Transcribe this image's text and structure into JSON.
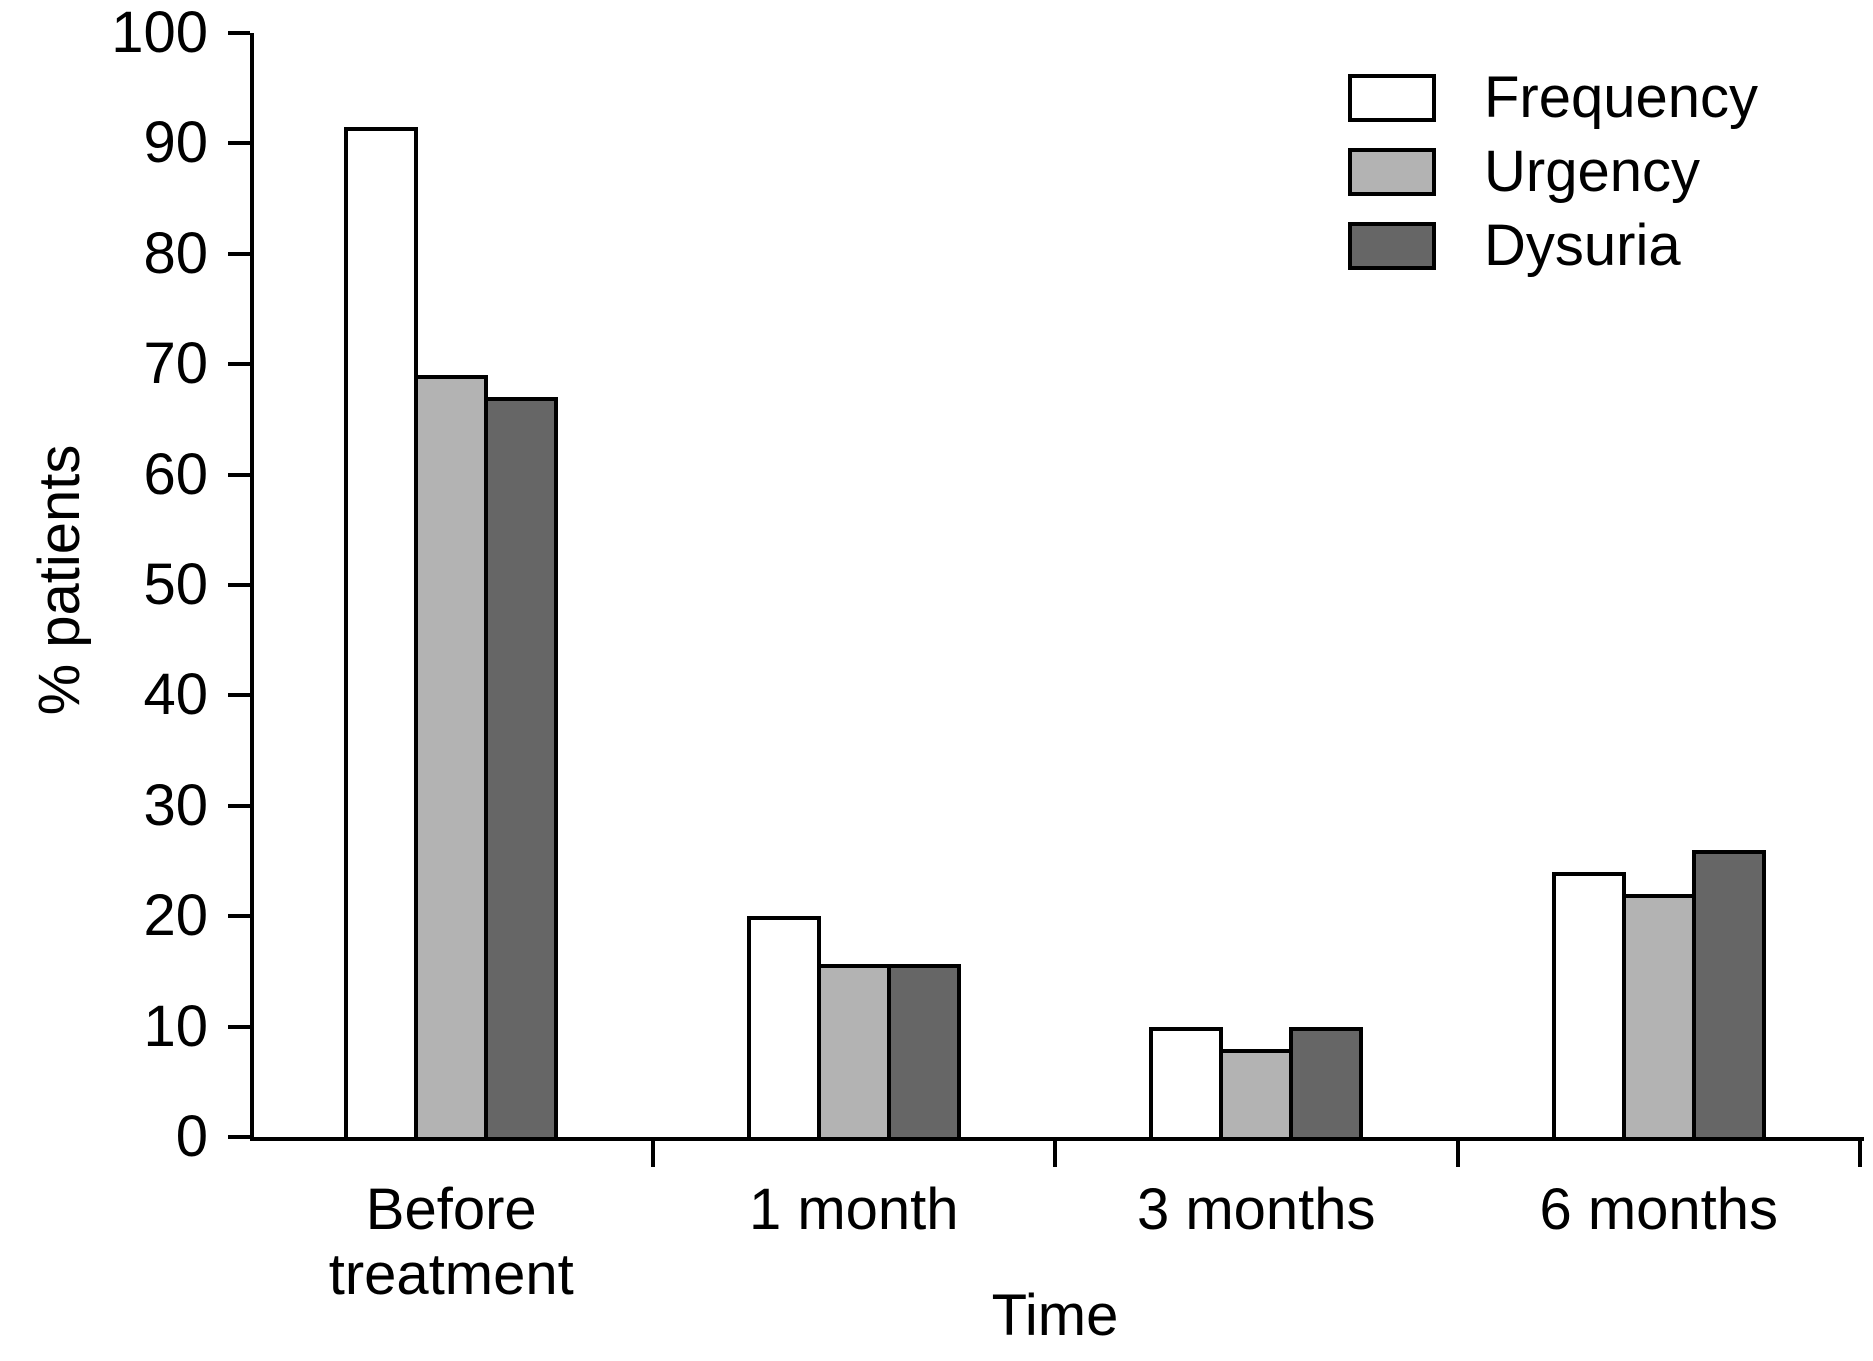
{
  "figure": {
    "background_color": "#ffffff",
    "text_color": "#000000",
    "axis_color": "#000000"
  },
  "chart_data": {
    "type": "bar",
    "title": "",
    "xlabel": "Time",
    "ylabel": "% patients",
    "categories": [
      "Before treatment",
      "1 month",
      "3 months",
      "6 months"
    ],
    "series": [
      {
        "name": "Frequency",
        "color": "#ffffff",
        "values": [
          91.5,
          20,
          10,
          24
        ]
      },
      {
        "name": "Urgency",
        "color": "#b3b3b3",
        "values": [
          69,
          15.7,
          8,
          22
        ]
      },
      {
        "name": "Dysuria",
        "color": "#666666",
        "values": [
          67,
          15.7,
          10,
          26
        ]
      }
    ],
    "ylim": [
      0,
      100
    ],
    "yticks": [
      0,
      10,
      20,
      30,
      40,
      50,
      60,
      70,
      80,
      90,
      100
    ],
    "grid": false,
    "legend_position": "top-right",
    "bar_outline_color": "#000000"
  }
}
